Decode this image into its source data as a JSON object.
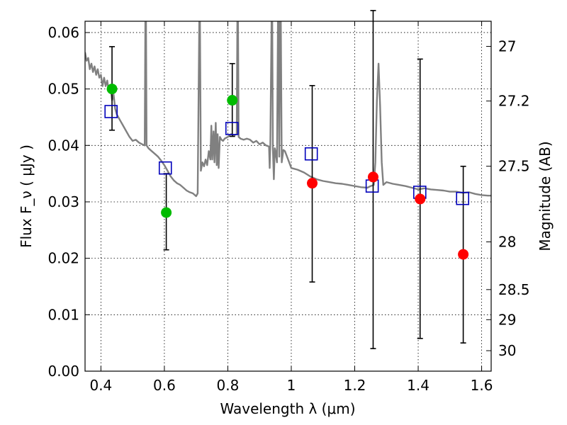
{
  "chart_data": {
    "type": "scatter",
    "xlabel": "Wavelength  λ (μm)",
    "ylabel": "Flux  F_ν  ( μJy )",
    "y2label": "Magnitude (AB)",
    "xlim": [
      0.35,
      1.63
    ],
    "ylim": [
      0.0,
      0.062
    ],
    "xticks": [
      0.4,
      0.6,
      0.8,
      1.0,
      1.2,
      1.4,
      1.6
    ],
    "xtick_labels": [
      "0.4",
      "0.6",
      "0.8",
      "1",
      "1.2",
      "1.4",
      "1.6"
    ],
    "yticks": [
      0.0,
      0.01,
      0.02,
      0.03,
      0.04,
      0.05,
      0.06
    ],
    "ytick_labels": [
      "0.00",
      "0.01",
      "0.02",
      "0.03",
      "0.04",
      "0.05",
      "0.06"
    ],
    "y2ticks": [
      27,
      27.2,
      27.5,
      28,
      28.5,
      29,
      30
    ],
    "y2tick_labels": [
      "27",
      "27.2",
      "27.5",
      "28",
      "28.5",
      "29",
      "30"
    ],
    "grid": true,
    "series": [
      {
        "kind": "model_sed",
        "color": "#808080",
        "points": [
          [
            0.35,
            0.0565
          ],
          [
            0.355,
            0.055
          ],
          [
            0.36,
            0.0555
          ],
          [
            0.365,
            0.0535
          ],
          [
            0.37,
            0.0545
          ],
          [
            0.375,
            0.053
          ],
          [
            0.38,
            0.054
          ],
          [
            0.385,
            0.0525
          ],
          [
            0.39,
            0.0535
          ],
          [
            0.395,
            0.052
          ],
          [
            0.4,
            0.0525
          ],
          [
            0.405,
            0.0505
          ],
          [
            0.41,
            0.052
          ],
          [
            0.415,
            0.0505
          ],
          [
            0.42,
            0.0515
          ],
          [
            0.425,
            0.0495
          ],
          [
            0.43,
            0.0505
          ],
          [
            0.435,
            0.048
          ],
          [
            0.44,
            0.049
          ],
          [
            0.445,
            0.0465
          ],
          [
            0.45,
            0.0455
          ],
          [
            0.46,
            0.0445
          ],
          [
            0.47,
            0.0435
          ],
          [
            0.48,
            0.0425
          ],
          [
            0.49,
            0.0415
          ],
          [
            0.5,
            0.0408
          ],
          [
            0.51,
            0.041
          ],
          [
            0.52,
            0.0405
          ],
          [
            0.53,
            0.0402
          ],
          [
            0.538,
            0.04
          ],
          [
            0.54,
            0.0625
          ],
          [
            0.542,
            0.0625
          ],
          [
            0.544,
            0.04
          ],
          [
            0.55,
            0.0395
          ],
          [
            0.56,
            0.039
          ],
          [
            0.57,
            0.0385
          ],
          [
            0.58,
            0.038
          ],
          [
            0.59,
            0.0373
          ],
          [
            0.6,
            0.0365
          ],
          [
            0.61,
            0.0355
          ],
          [
            0.62,
            0.0345
          ],
          [
            0.63,
            0.0338
          ],
          [
            0.64,
            0.0333
          ],
          [
            0.65,
            0.033
          ],
          [
            0.66,
            0.0325
          ],
          [
            0.67,
            0.032
          ],
          [
            0.68,
            0.0317
          ],
          [
            0.69,
            0.0315
          ],
          [
            0.7,
            0.031
          ],
          [
            0.705,
            0.0315
          ],
          [
            0.71,
            0.0625
          ],
          [
            0.712,
            0.0625
          ],
          [
            0.715,
            0.0355
          ],
          [
            0.72,
            0.037
          ],
          [
            0.725,
            0.0363
          ],
          [
            0.73,
            0.0375
          ],
          [
            0.735,
            0.0365
          ],
          [
            0.74,
            0.039
          ],
          [
            0.745,
            0.0375
          ],
          [
            0.748,
            0.0435
          ],
          [
            0.751,
            0.0375
          ],
          [
            0.755,
            0.0425
          ],
          [
            0.758,
            0.037
          ],
          [
            0.762,
            0.044
          ],
          [
            0.765,
            0.0365
          ],
          [
            0.768,
            0.042
          ],
          [
            0.771,
            0.036
          ],
          [
            0.775,
            0.0415
          ],
          [
            0.78,
            0.041
          ],
          [
            0.785,
            0.0408
          ],
          [
            0.79,
            0.0412
          ],
          [
            0.8,
            0.0415
          ],
          [
            0.81,
            0.042
          ],
          [
            0.82,
            0.0418
          ],
          [
            0.828,
            0.042
          ],
          [
            0.83,
            0.0625
          ],
          [
            0.832,
            0.0625
          ],
          [
            0.834,
            0.0415
          ],
          [
            0.84,
            0.0412
          ],
          [
            0.85,
            0.041
          ],
          [
            0.86,
            0.0412
          ],
          [
            0.87,
            0.041
          ],
          [
            0.88,
            0.0405
          ],
          [
            0.89,
            0.0408
          ],
          [
            0.9,
            0.0402
          ],
          [
            0.91,
            0.0405
          ],
          [
            0.92,
            0.04
          ],
          [
            0.93,
            0.0398
          ],
          [
            0.932,
            0.036
          ],
          [
            0.934,
            0.04
          ],
          [
            0.938,
            0.0625
          ],
          [
            0.94,
            0.0625
          ],
          [
            0.942,
            0.0395
          ],
          [
            0.945,
            0.034
          ],
          [
            0.948,
            0.0395
          ],
          [
            0.95,
            0.039
          ],
          [
            0.955,
            0.037
          ],
          [
            0.958,
            0.0625
          ],
          [
            0.96,
            0.0625
          ],
          [
            0.962,
            0.038
          ],
          [
            0.965,
            0.0625
          ],
          [
            0.967,
            0.0625
          ],
          [
            0.97,
            0.037
          ],
          [
            0.975,
            0.0392
          ],
          [
            0.98,
            0.039
          ],
          [
            0.99,
            0.0375
          ],
          [
            1.0,
            0.036
          ],
          [
            1.02,
            0.0357
          ],
          [
            1.04,
            0.0352
          ],
          [
            1.06,
            0.0345
          ],
          [
            1.08,
            0.034
          ],
          [
            1.1,
            0.0337
          ],
          [
            1.12,
            0.0335
          ],
          [
            1.14,
            0.0333
          ],
          [
            1.16,
            0.0332
          ],
          [
            1.18,
            0.033
          ],
          [
            1.2,
            0.0328
          ],
          [
            1.22,
            0.0326
          ],
          [
            1.24,
            0.0325
          ],
          [
            1.25,
            0.0328
          ],
          [
            1.26,
            0.033
          ],
          [
            1.265,
            0.037
          ],
          [
            1.27,
            0.048
          ],
          [
            1.275,
            0.0545
          ],
          [
            1.28,
            0.047
          ],
          [
            1.285,
            0.037
          ],
          [
            1.29,
            0.033
          ],
          [
            1.3,
            0.0335
          ],
          [
            1.32,
            0.0332
          ],
          [
            1.34,
            0.033
          ],
          [
            1.36,
            0.0328
          ],
          [
            1.38,
            0.0325
          ],
          [
            1.4,
            0.0322
          ],
          [
            1.42,
            0.0324
          ],
          [
            1.44,
            0.0322
          ],
          [
            1.46,
            0.0321
          ],
          [
            1.48,
            0.032
          ],
          [
            1.5,
            0.0318
          ],
          [
            1.52,
            0.0318
          ],
          [
            1.54,
            0.0316
          ],
          [
            1.56,
            0.0317
          ],
          [
            1.58,
            0.0314
          ],
          [
            1.6,
            0.0312
          ],
          [
            1.62,
            0.0311
          ],
          [
            1.63,
            0.0311
          ]
        ]
      },
      {
        "kind": "model_photometry",
        "marker": "open_square",
        "color": "#0000bb",
        "x": [
          0.432,
          0.603,
          0.813,
          1.063,
          1.255,
          1.405,
          1.54
        ],
        "y": [
          0.046,
          0.036,
          0.043,
          0.0385,
          0.0328,
          0.0317,
          0.0306
        ]
      },
      {
        "kind": "observed_optical",
        "marker": "filled_circle",
        "color": "#00bb00",
        "x": [
          0.435,
          0.606,
          0.814
        ],
        "y": [
          0.05,
          0.0281,
          0.048
        ],
        "yerr_low": [
          0.0073,
          0.0066,
          0.0064
        ],
        "yerr_high": [
          0.0075,
          0.0069,
          0.0065
        ]
      },
      {
        "kind": "observed_nir",
        "marker": "filled_circle",
        "color": "#ff0000",
        "x": [
          1.066,
          1.258,
          1.406,
          1.542
        ],
        "y": [
          0.0333,
          0.0344,
          0.0305,
          0.0207
        ],
        "yerr_low": [
          0.0175,
          0.0304,
          0.0247,
          0.0157
        ],
        "yerr_high": [
          0.0173,
          0.0295,
          0.0248,
          0.0156
        ]
      }
    ]
  }
}
